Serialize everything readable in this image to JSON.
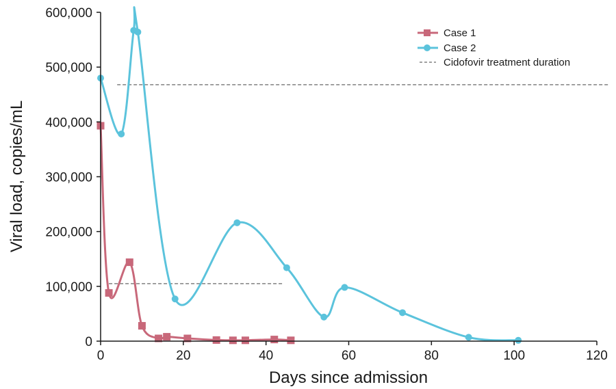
{
  "chart_data": {
    "type": "line",
    "xlabel": "Days since admission",
    "ylabel": "Viral load, copies/mL",
    "xlim": [
      0,
      120
    ],
    "ylim": [
      0,
      600000
    ],
    "x_ticks": [
      0,
      20,
      40,
      60,
      80,
      100,
      120
    ],
    "y_ticks": [
      0,
      100000,
      200000,
      300000,
      400000,
      500000,
      600000
    ],
    "x_tick_labels": [
      "0",
      "20",
      "40",
      "60",
      "80",
      "100",
      "120"
    ],
    "y_tick_labels": [
      "0",
      "100,000",
      "200,000",
      "300,000",
      "400,000",
      "500,000",
      "600,000"
    ],
    "grid": false,
    "legend_position": "top-right",
    "series": [
      {
        "name": "Case 1",
        "color": "#c8687a",
        "marker": "square",
        "points": [
          [
            0,
            393000
          ],
          [
            2,
            88000
          ],
          [
            7,
            144000
          ],
          [
            10,
            28000
          ],
          [
            14,
            5000
          ],
          [
            16,
            8000
          ],
          [
            21,
            5000
          ],
          [
            28,
            2000
          ],
          [
            32,
            1500
          ],
          [
            35,
            1500
          ],
          [
            42,
            3000
          ],
          [
            46,
            1500
          ]
        ]
      },
      {
        "name": "Case 2",
        "color": "#5bc3dc",
        "marker": "circle",
        "points": [
          [
            0,
            480000
          ],
          [
            5,
            378000
          ],
          [
            8,
            567000
          ],
          [
            9,
            564000
          ],
          [
            18,
            77000
          ],
          [
            33,
            216000
          ],
          [
            45,
            134000
          ],
          [
            54,
            44000
          ],
          [
            59,
            98000
          ],
          [
            73,
            52000
          ],
          [
            89,
            7000
          ],
          [
            101,
            1500
          ]
        ]
      }
    ],
    "treatment_lines": [
      {
        "series": "Case 1",
        "x": [
          2,
          44
        ],
        "y": 105000
      },
      {
        "series": "Case 2",
        "x": [
          4,
          123
        ],
        "y": 468000
      }
    ],
    "legend": {
      "case1": "Case 1",
      "case2": "Case 2",
      "treatment": "Cidofovir treatment duration"
    }
  }
}
